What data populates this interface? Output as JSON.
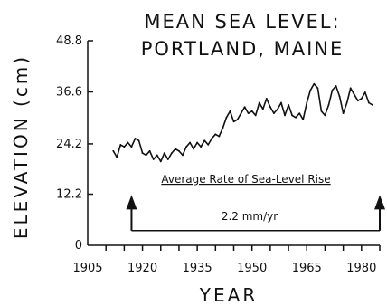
{
  "chart_data": {
    "type": "line",
    "title_lines": [
      "MEAN SEA LEVEL:",
      "PORTLAND, MAINE"
    ],
    "xlabel": "YEAR",
    "ylabel": "ELEVATION (cm)",
    "xlim": [
      1905,
      1985
    ],
    "ylim": [
      0,
      48.8
    ],
    "x_ticks": [
      1905,
      1920,
      1935,
      1950,
      1965,
      1980
    ],
    "x_minor_step": 5,
    "y_ticks": [
      0,
      12.2,
      24.2,
      36.6,
      48.8
    ],
    "y_tick_labels": [
      "0",
      "12.2",
      "24.2",
      "36.6",
      "48.8"
    ],
    "line_color": "#111111",
    "series": [
      {
        "x": [
          1912,
          1913,
          1914,
          1915,
          1916,
          1917,
          1918,
          1919,
          1920,
          1921,
          1922,
          1923,
          1924,
          1925,
          1926,
          1927,
          1928,
          1929,
          1930,
          1931,
          1932,
          1933,
          1934,
          1935,
          1936,
          1937,
          1938,
          1939,
          1940,
          1941,
          1942,
          1943,
          1944,
          1945,
          1946,
          1947,
          1948,
          1949,
          1950,
          1951,
          1952,
          1953,
          1954,
          1955,
          1956,
          1957,
          1958,
          1959,
          1960,
          1961,
          1962,
          1963,
          1964,
          1965,
          1966,
          1967,
          1968,
          1969,
          1970,
          1971,
          1972,
          1973,
          1974,
          1975,
          1976,
          1977,
          1978,
          1979,
          1980,
          1981,
          1982,
          1983
        ],
        "values": [
          22.5,
          21.0,
          24.0,
          23.5,
          24.5,
          23.5,
          25.5,
          25.0,
          22.0,
          21.5,
          22.5,
          20.5,
          21.5,
          20.0,
          22.0,
          20.5,
          22.0,
          23.0,
          22.5,
          21.5,
          23.5,
          24.5,
          23.0,
          24.5,
          23.5,
          25.0,
          24.0,
          25.5,
          26.5,
          26.0,
          28.0,
          30.5,
          32.0,
          29.5,
          30.0,
          31.5,
          33.0,
          31.5,
          32.0,
          31.0,
          34.0,
          32.5,
          35.0,
          33.0,
          31.5,
          32.5,
          34.0,
          31.0,
          33.5,
          31.0,
          30.5,
          31.5,
          30.0,
          34.0,
          37.0,
          38.5,
          37.5,
          32.0,
          31.0,
          33.5,
          37.0,
          38.0,
          35.5,
          31.5,
          34.0,
          37.5,
          36.0,
          34.5,
          35.0,
          36.5,
          34.0,
          33.5
        ]
      }
    ],
    "annotation": {
      "label": "Average Rate of Sea-Level Rise",
      "rate": "2.2 mm/yr",
      "x_range": [
        1917,
        1985
      ],
      "y_top": 12.0,
      "y_bottom": 3.5
    }
  }
}
